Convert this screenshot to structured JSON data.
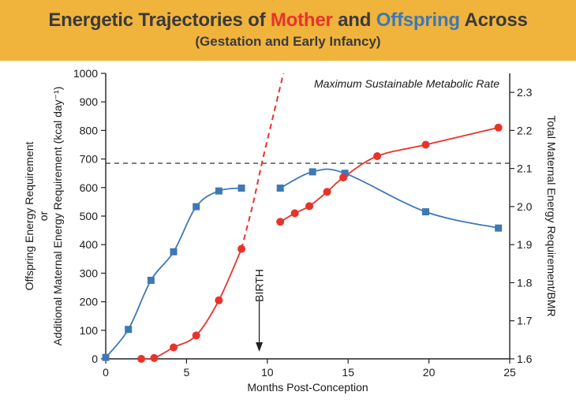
{
  "header": {
    "title_part1": "Energetic Trajectories of ",
    "title_mother": "Mother",
    "title_and": " and ",
    "title_offspring": "Offspring",
    "title_part2": " Across",
    "subtitle": "(Gestation and Early Infancy)"
  },
  "colors": {
    "banner": "#F0B33C",
    "mother": "#E8332A",
    "offspring": "#3E78B5",
    "threshold": "#333333"
  },
  "chart_data": {
    "type": "line",
    "xlabel": "Months Post-Conception",
    "ylabel_left": [
      "Offspring Energy Requirement",
      "or",
      "Additional Maternal Energy Requirement (kcal day⁻¹)"
    ],
    "ylabel_right": "Total Maternal Energy Requirement/BMR",
    "xlim": [
      0,
      25
    ],
    "ylim_left": [
      0,
      1000
    ],
    "ylim_right": [
      1.6,
      2.35
    ],
    "x_ticks": [
      0,
      5,
      10,
      15,
      20,
      25
    ],
    "y_left_ticks": [
      0,
      100,
      200,
      300,
      400,
      500,
      600,
      700,
      800,
      900,
      1000
    ],
    "y_right_ticks": [
      1.6,
      1.7,
      1.8,
      1.9,
      2.0,
      2.1,
      2.2,
      2.3
    ],
    "threshold": {
      "label": "Maximum Sustainable Metabolic Rate",
      "value_left": 685
    },
    "birth": {
      "label": "BIRTH",
      "x": 9.5
    },
    "series": [
      {
        "name": "Offspring",
        "axis": "left",
        "marker": "square",
        "segments": [
          [
            [
              0,
              5
            ],
            [
              1.4,
              103
            ],
            [
              2.8,
              275
            ],
            [
              4.2,
              375
            ],
            [
              5.6,
              533
            ],
            [
              7,
              588
            ],
            [
              8.4,
              598
            ]
          ],
          [
            [
              10.8,
              598
            ],
            [
              12.8,
              655
            ],
            [
              14.8,
              650
            ],
            [
              19.8,
              515
            ],
            [
              24.3,
              458
            ]
          ]
        ]
      },
      {
        "name": "Mother",
        "axis": "left",
        "marker": "circle",
        "segments": [
          [
            [
              2.2,
              0
            ],
            [
              3,
              3
            ],
            [
              4.2,
              40
            ],
            [
              5.6,
              82
            ],
            [
              7,
              205
            ],
            [
              8.4,
              385
            ]
          ],
          [
            [
              10.8,
              480
            ],
            [
              11.7,
              510
            ],
            [
              12.6,
              535
            ],
            [
              13.7,
              585
            ],
            [
              14.7,
              635
            ],
            [
              16.8,
              710
            ],
            [
              19.8,
              750
            ],
            [
              24.3,
              810
            ]
          ]
        ],
        "projection": [
          [
            8.4,
            385
          ],
          [
            9.1,
            540
          ],
          [
            9.7,
            695
          ],
          [
            10.4,
            860
          ],
          [
            11.0,
            1000
          ]
        ]
      }
    ]
  }
}
